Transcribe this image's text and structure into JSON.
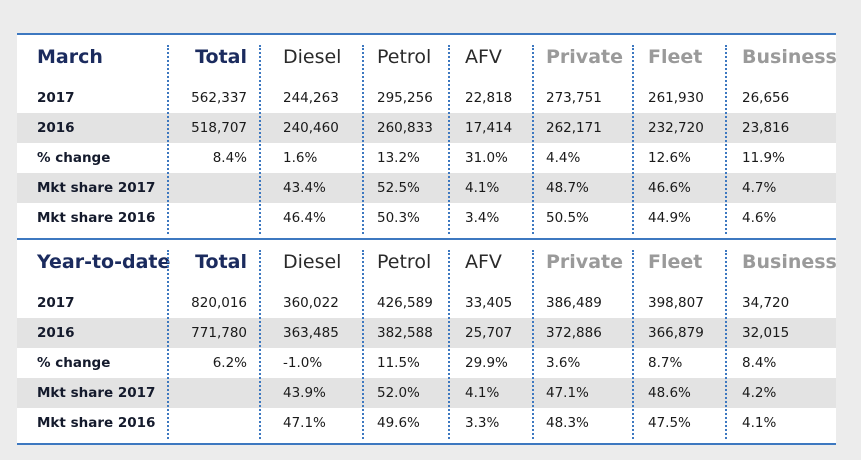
{
  "tables": [
    {
      "heading": "March",
      "columns": [
        "Total",
        "Diesel",
        "Petrol",
        "AFV",
        "Private",
        "Fleet",
        "Business"
      ],
      "rows": [
        {
          "label": "2017",
          "values": [
            "562,337",
            "244,263",
            "295,256",
            "22,818",
            "273,751",
            "261,930",
            "26,656"
          ]
        },
        {
          "label": "2016",
          "values": [
            "518,707",
            "240,460",
            "260,833",
            "17,414",
            "262,171",
            "232,720",
            "23,816"
          ]
        },
        {
          "label": "% change",
          "values": [
            "8.4%",
            "1.6%",
            "13.2%",
            "31.0%",
            "4.4%",
            "12.6%",
            "11.9%"
          ]
        },
        {
          "label": "Mkt share 2017",
          "values": [
            "",
            "43.4%",
            "52.5%",
            "4.1%",
            "48.7%",
            "46.6%",
            "4.7%"
          ]
        },
        {
          "label": "Mkt share 2016",
          "values": [
            "",
            "46.4%",
            "50.3%",
            "3.4%",
            "50.5%",
            "44.9%",
            "4.6%"
          ]
        }
      ]
    },
    {
      "heading": "Year-to-date",
      "columns": [
        "Total",
        "Diesel",
        "Petrol",
        "AFV",
        "Private",
        "Fleet",
        "Business"
      ],
      "rows": [
        {
          "label": "2017",
          "values": [
            "820,016",
            "360,022",
            "426,589",
            "33,405",
            "386,489",
            "398,807",
            "34,720"
          ]
        },
        {
          "label": "2016",
          "values": [
            "771,780",
            "363,485",
            "382,588",
            "25,707",
            "372,886",
            "366,879",
            "32,015"
          ]
        },
        {
          "label": "% change",
          "values": [
            "6.2%",
            "-1.0%",
            "11.5%",
            "29.9%",
            "3.6%",
            "8.7%",
            "8.4%"
          ]
        },
        {
          "label": "Mkt share 2017",
          "values": [
            "",
            "43.9%",
            "52.0%",
            "4.1%",
            "47.1%",
            "48.6%",
            "4.2%"
          ]
        },
        {
          "label": "Mkt share 2016",
          "values": [
            "",
            "47.1%",
            "49.6%",
            "3.3%",
            "48.3%",
            "47.5%",
            "4.1%"
          ]
        }
      ]
    }
  ],
  "colors": {
    "accent_line": "#3d78c0",
    "heading_navy": "#1b2b5e",
    "group_grey": "#9a9a9a",
    "shaded_row": "#e3e3e3",
    "background": "#ececec"
  }
}
